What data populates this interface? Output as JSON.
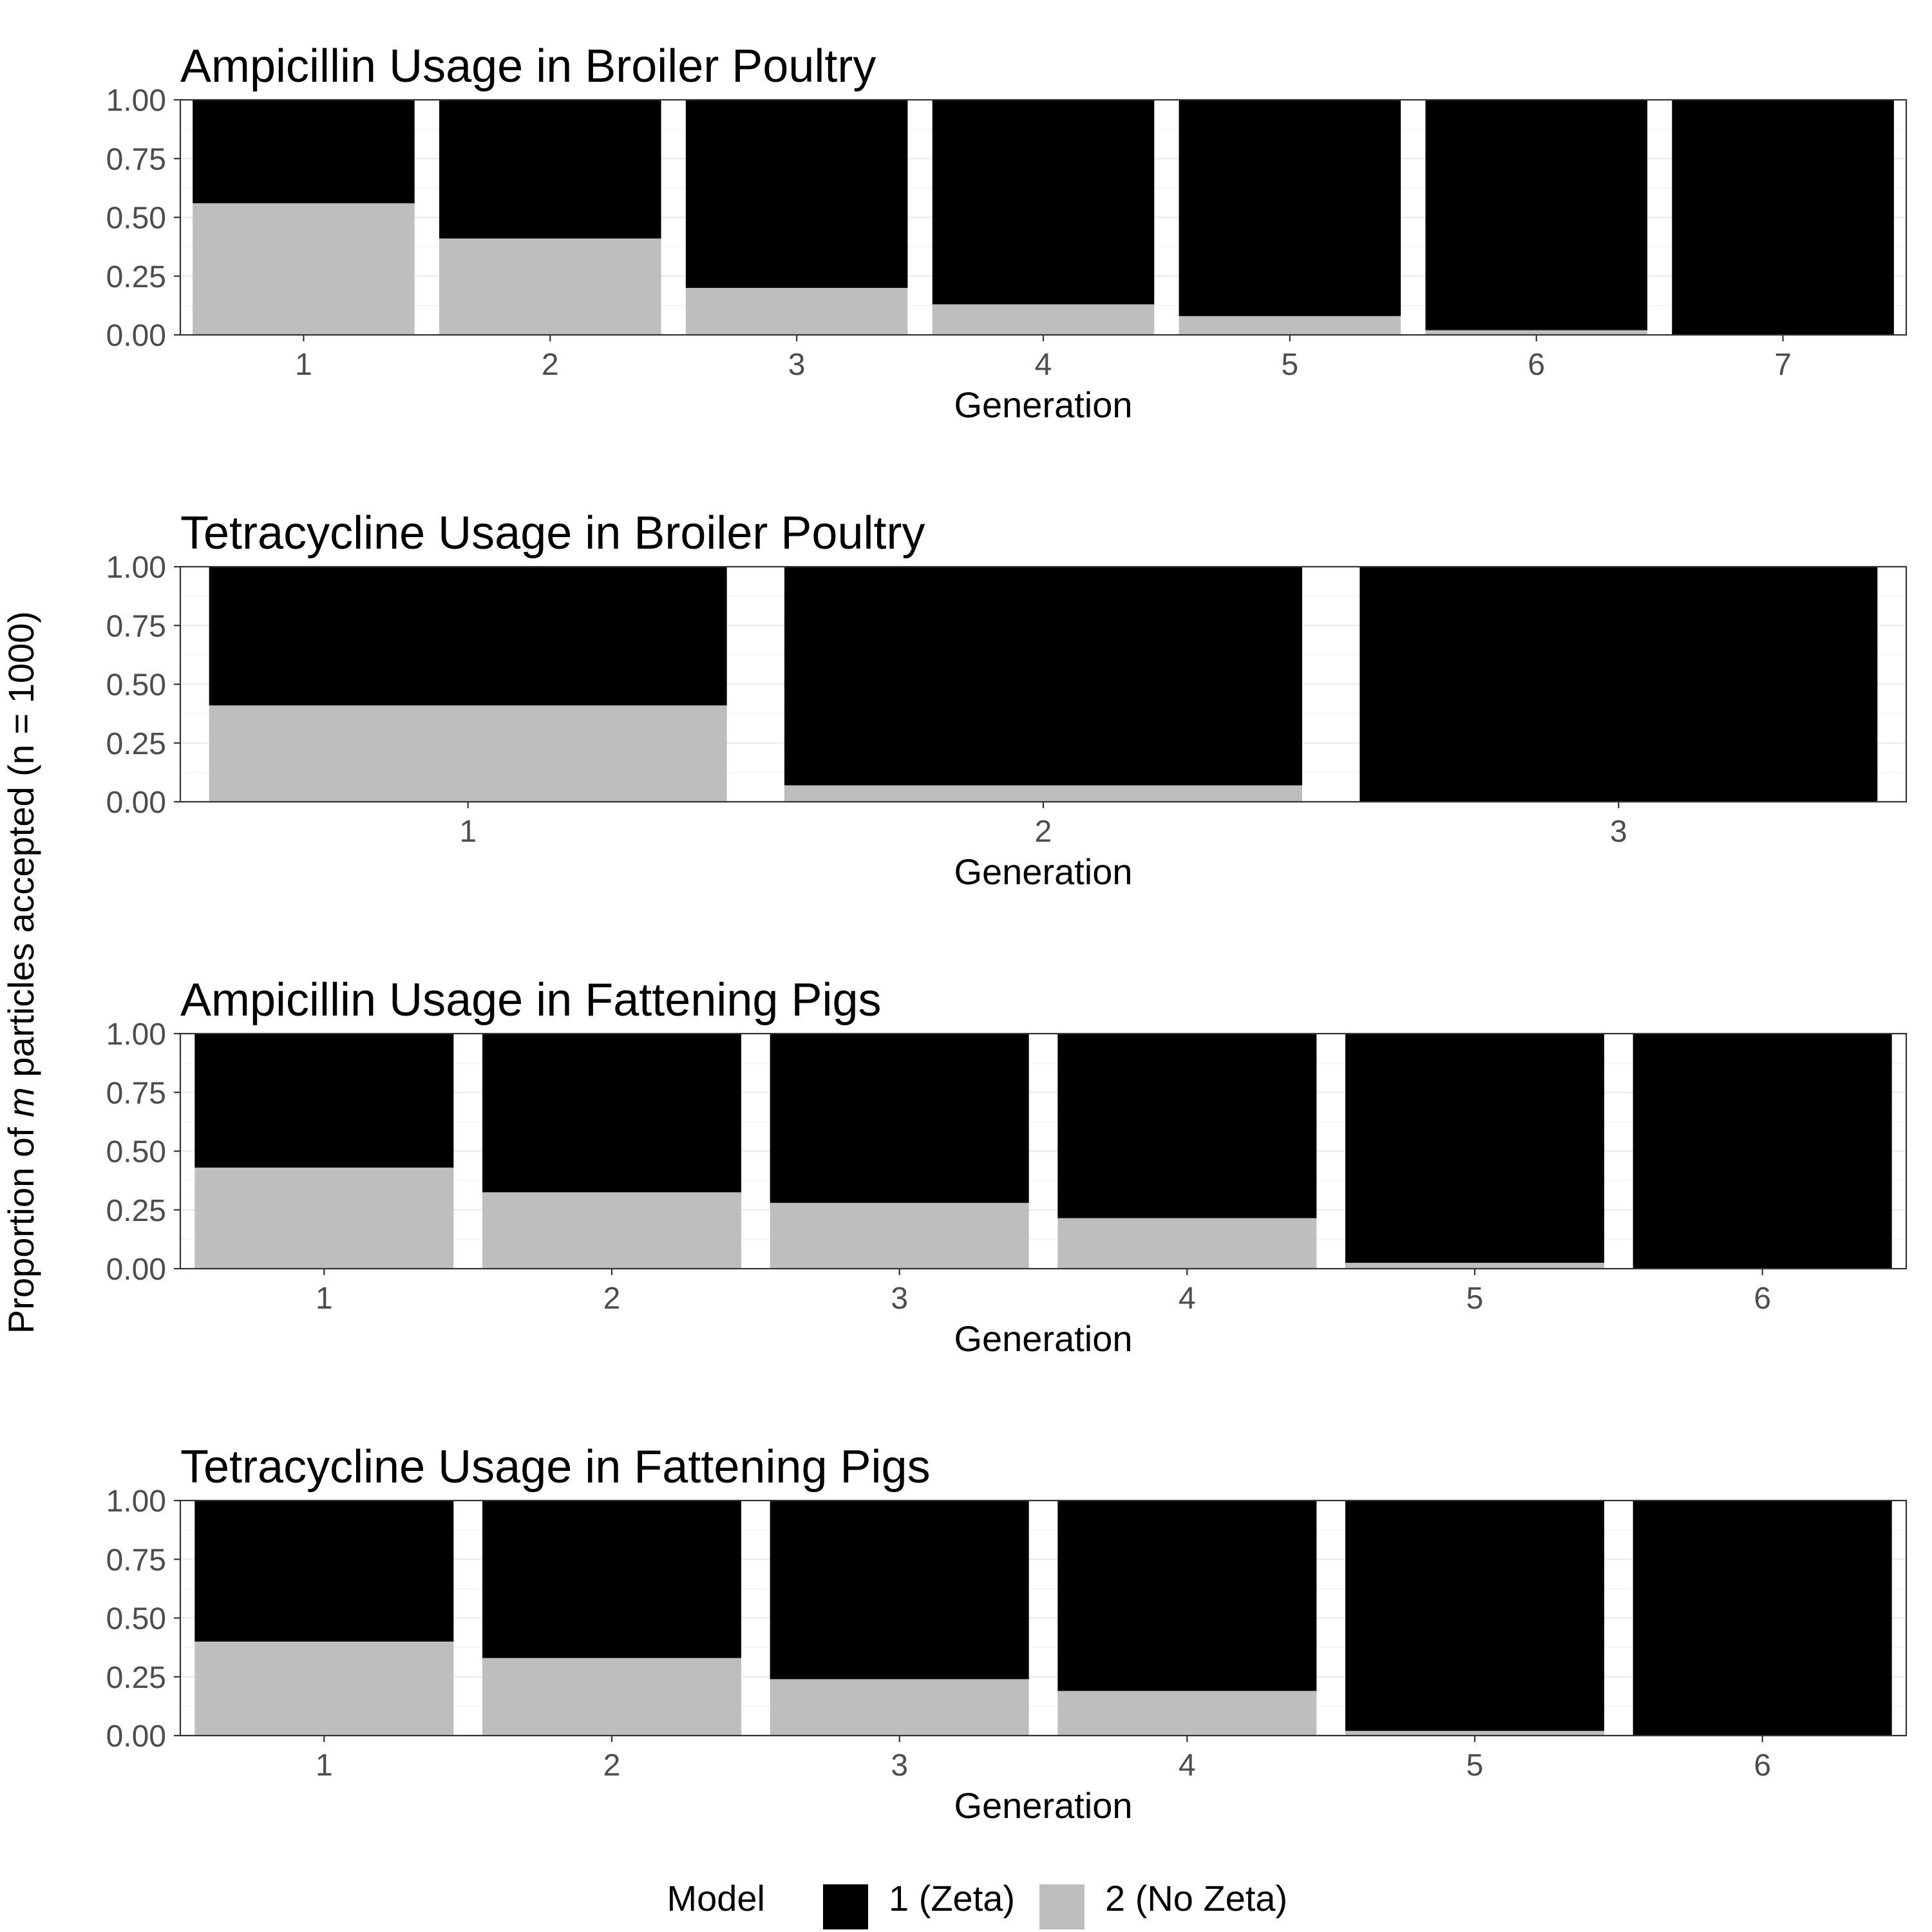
{
  "figure": {
    "ylabel_prefix": "Proportion of ",
    "ylabel_italic": "m",
    "ylabel_suffix": " particles accepted (n = 1000)"
  },
  "legend": {
    "title": "Model",
    "items": [
      {
        "label": "1 (Zeta)",
        "color": "#000000"
      },
      {
        "label": "2 (No Zeta)",
        "color": "#bebebe"
      }
    ]
  },
  "chart_data": [
    {
      "type": "bar",
      "stacked": true,
      "title": "Ampicillin Usage in Broiler Poultry",
      "xlabel": "Generation",
      "ylim": [
        0,
        1
      ],
      "yticks": [
        "0.00",
        "0.25",
        "0.50",
        "0.75",
        "1.00"
      ],
      "categories": [
        "1",
        "2",
        "3",
        "4",
        "5",
        "6",
        "7"
      ],
      "series": [
        {
          "name": "1 (Zeta)",
          "color": "#000000",
          "values": [
            0.44,
            0.59,
            0.8,
            0.87,
            0.92,
            0.98,
            1.0
          ]
        },
        {
          "name": "2 (No Zeta)",
          "color": "#bebebe",
          "values": [
            0.56,
            0.41,
            0.2,
            0.13,
            0.08,
            0.02,
            0.0
          ]
        }
      ]
    },
    {
      "type": "bar",
      "stacked": true,
      "title": "Tetracycline Usage in Broiler Poultry",
      "xlabel": "Generation",
      "ylim": [
        0,
        1
      ],
      "yticks": [
        "0.00",
        "0.25",
        "0.50",
        "0.75",
        "1.00"
      ],
      "categories": [
        "1",
        "2",
        "3"
      ],
      "series": [
        {
          "name": "1 (Zeta)",
          "color": "#000000",
          "values": [
            0.59,
            0.93,
            1.0
          ]
        },
        {
          "name": "2 (No Zeta)",
          "color": "#bebebe",
          "values": [
            0.41,
            0.07,
            0.0
          ]
        }
      ]
    },
    {
      "type": "bar",
      "stacked": true,
      "title": "Ampicillin Usage in Fattening Pigs",
      "xlabel": "Generation",
      "ylim": [
        0,
        1
      ],
      "yticks": [
        "0.00",
        "0.25",
        "0.50",
        "0.75",
        "1.00"
      ],
      "categories": [
        "1",
        "2",
        "3",
        "4",
        "5",
        "6"
      ],
      "series": [
        {
          "name": "1 (Zeta)",
          "color": "#000000",
          "values": [
            0.57,
            0.675,
            0.72,
            0.785,
            0.975,
            1.0
          ]
        },
        {
          "name": "2 (No Zeta)",
          "color": "#bebebe",
          "values": [
            0.43,
            0.325,
            0.28,
            0.215,
            0.025,
            0.0
          ]
        }
      ]
    },
    {
      "type": "bar",
      "stacked": true,
      "title": "Tetracycline Usage in Fattening Pigs",
      "xlabel": "Generation",
      "ylim": [
        0,
        1
      ],
      "yticks": [
        "0.00",
        "0.25",
        "0.50",
        "0.75",
        "1.00"
      ],
      "categories": [
        "1",
        "2",
        "3",
        "4",
        "5",
        "6"
      ],
      "series": [
        {
          "name": "1 (Zeta)",
          "color": "#000000",
          "values": [
            0.6,
            0.67,
            0.76,
            0.81,
            0.98,
            1.0
          ]
        },
        {
          "name": "2 (No Zeta)",
          "color": "#bebebe",
          "values": [
            0.4,
            0.33,
            0.24,
            0.19,
            0.02,
            0.0
          ]
        }
      ]
    }
  ]
}
